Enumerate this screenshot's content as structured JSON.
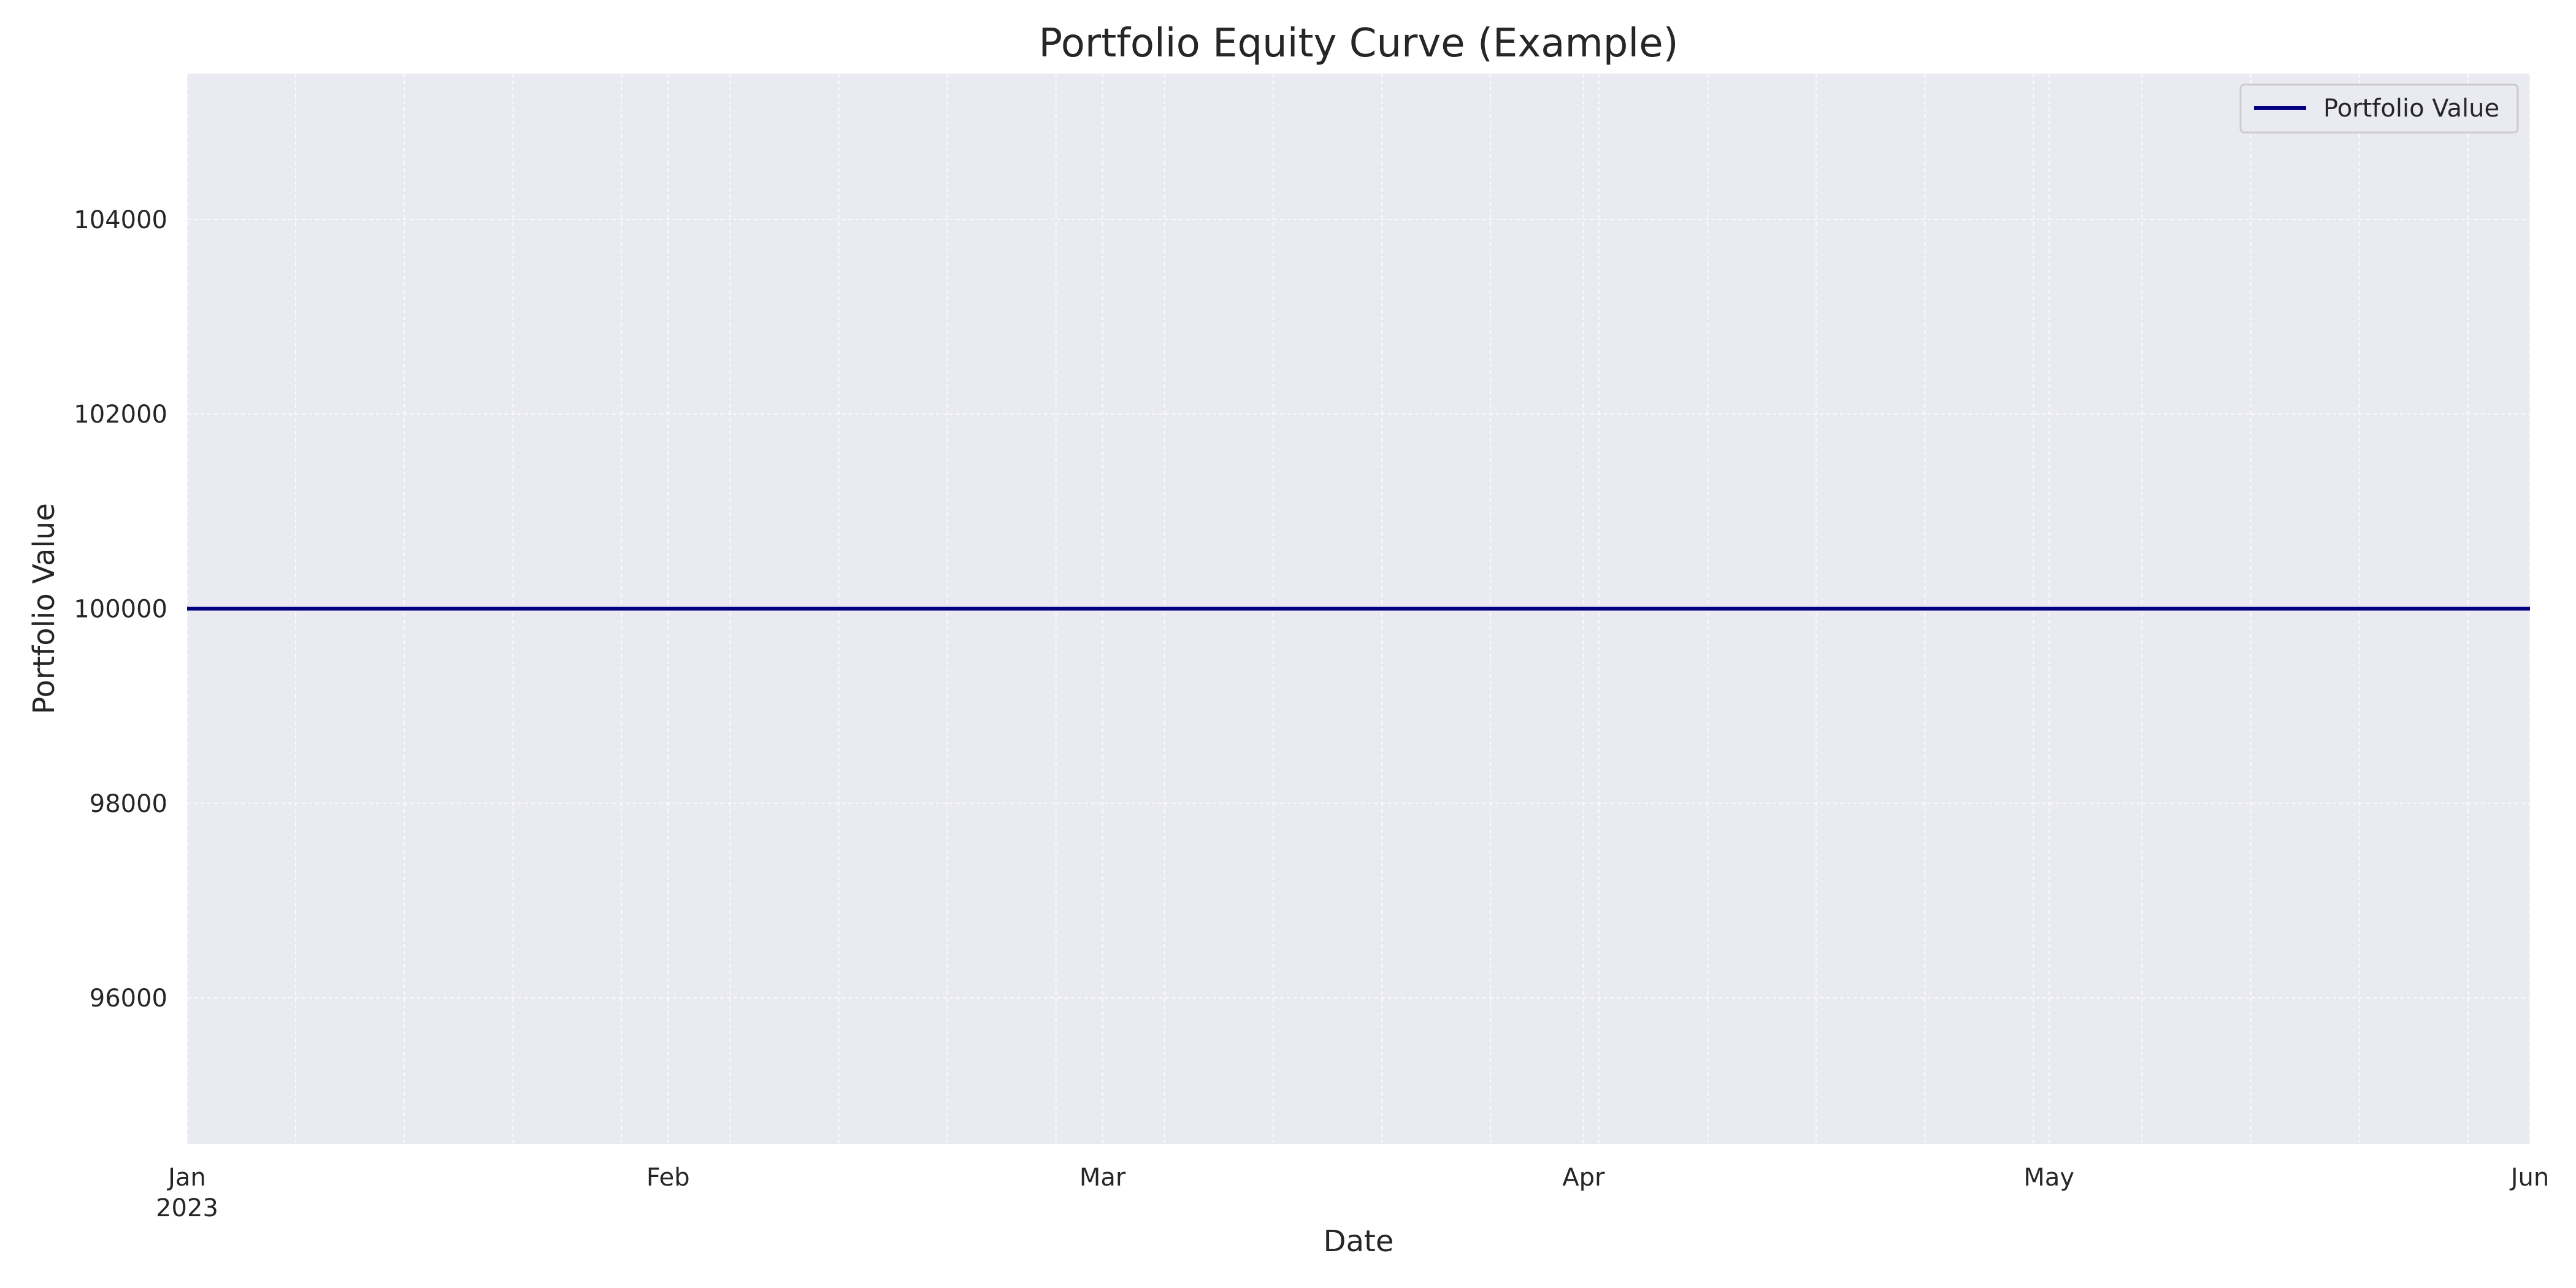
{
  "chart_data": {
    "type": "line",
    "title": "Portfolio Equity Curve (Example)",
    "xlabel": "Date",
    "ylabel": "Portfolio Value",
    "xlim": [
      "2023-01-01",
      "2023-06-01"
    ],
    "ylim": [
      94500,
      105500
    ],
    "x_ticks": [
      {
        "date": "2023-01-01",
        "label": "Jan",
        "sublabel": "2023"
      },
      {
        "date": "2023-02-01",
        "label": "Feb",
        "sublabel": ""
      },
      {
        "date": "2023-03-01",
        "label": "Mar",
        "sublabel": ""
      },
      {
        "date": "2023-04-01",
        "label": "Apr",
        "sublabel": ""
      },
      {
        "date": "2023-05-01",
        "label": "May",
        "sublabel": ""
      },
      {
        "date": "2023-06-01",
        "label": "Jun",
        "sublabel": ""
      }
    ],
    "y_ticks": [
      96000,
      98000,
      100000,
      102000,
      104000
    ],
    "minor_x_grid": "weekly",
    "grid": true,
    "legend": {
      "position": "top-right"
    },
    "series": [
      {
        "name": "Portfolio Value",
        "color": "#000080",
        "x": [
          "2023-01-01",
          "2023-06-01"
        ],
        "y": [
          100000,
          100000
        ]
      }
    ],
    "colors": {
      "plot_background": "#eaeaf2",
      "grid": "#ffffff",
      "line": "#000080"
    }
  }
}
